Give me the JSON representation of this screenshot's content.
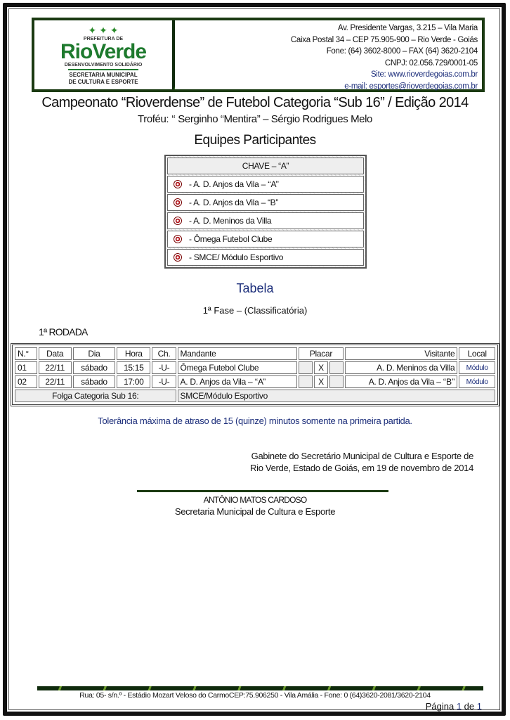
{
  "logo": {
    "top": "PREFEITURA DE",
    "name": "RioVerde",
    "tagline": "DESENVOLVIMENTO SOLIDÁRIO",
    "dept1": "SECRETARIA MUNICIPAL",
    "dept2": "DE CULTURA E ESPORTE"
  },
  "contact": [
    "Av. Presidente Vargas, 3.215 – Vila Maria",
    "Caixa Postal 34 – CEP 75.905-900 – Rio Verde - Goiás",
    "Fone: (64) 3602-8000 – FAX (64) 3620-2104",
    "CNPJ: 02.056.729/0001-05",
    "Site: www.rioverdegoias.com.br",
    "e-mail: esportes@rioverdegoias.com.br"
  ],
  "title": "Campeonato “Rioverdense” de Futebol Categoria “Sub 16” / Edição 2014",
  "trophy": "Troféu: ‘‘ Serginho “Mentira” – Sérgio Rodrigues Melo",
  "teams_heading": "Equipes Participantes",
  "group": {
    "name": "CHAVE – “A”",
    "teams": [
      "- A. D. Anjos da Vila – ‘‘A’’",
      "- A. D. Anjos da Vila – “B”",
      "- A. D. Meninos da Villa",
      "- Ômega Futebol Clube",
      "- SMCE/ Módulo Esportivo"
    ]
  },
  "table_heading": "Tabela",
  "phase": "1ª Fase – (Classificatória)",
  "round": "1ª RODADA",
  "columns": [
    "N.°",
    "Data",
    "Dia",
    "Hora",
    "Ch.",
    "Mandante",
    "Placar",
    "Visitante",
    "Local"
  ],
  "matches": [
    {
      "n": "01",
      "date": "22/11",
      "day": "sábado",
      "time": "15:15",
      "ch": "-U-",
      "home": "Ômega Futebol Clube",
      "x": "X",
      "away": "A. D. Meninos da Villa",
      "local": "Módulo"
    },
    {
      "n": "02",
      "date": "22/11",
      "day": "sábado",
      "time": "17:00",
      "ch": "-U-",
      "home": "A. D. Anjos da Vila – ‘‘A’’",
      "x": "X",
      "away": "A. D. Anjos da Vila – ‘‘B’’",
      "local": "Módulo"
    }
  ],
  "bye": {
    "label": "Folga Categoria Sub 16:",
    "team": "SMCE/Módulo Esportivo"
  },
  "tolerance": "Tolerância máxima de atraso de 15 (quinze) minutos somente na primeira partida.",
  "office": [
    "Gabinete do Secretário Municipal de Cultura e Esporte de",
    "Rio Verde, Estado de Goiás, em 19 de novembro de 2014"
  ],
  "signature": {
    "name": "ANTÔNIO MATOS CARDOSO",
    "role": "Secretaria Municipal de Cultura e Esporte"
  },
  "footer": "Rua: 05- s/n.º - Estádio Mozart Veloso do CarmoCEP:75.906250 - Vila Amália - Fone: 0 (64)3620-2081/3620-2104",
  "page": {
    "label": "Página",
    "current": "1",
    "of": "de",
    "total": "1"
  }
}
